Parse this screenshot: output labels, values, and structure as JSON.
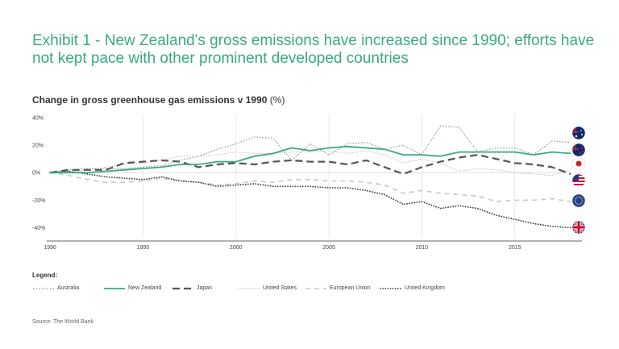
{
  "title": "Exhibit 1 - New Zealand's gross emissions have increased since 1990; efforts have not kept pace with other prominent developed countries",
  "subtitle": "Change in gross greenhouse gas emissions v 1990",
  "subtitle_unit": "(%)",
  "legend_heading": "Legend:",
  "source": "Source: The World Bank",
  "colors": {
    "new_zealand": "#3aaa80",
    "japan": "#555555",
    "australia": "#999999",
    "united_states": "#aaaaaa",
    "european_union": "#c8c8c8",
    "united_kingdom": "#444444",
    "title": "#3aaa80"
  },
  "flag_icons": [
    "australia-flag-icon",
    "new-zealand-flag-icon",
    "japan-flag-icon",
    "united-states-flag-icon",
    "european-union-flag-icon",
    "united-kingdom-flag-icon"
  ],
  "chart_data": {
    "type": "line",
    "title": "Change in gross greenhouse gas emissions v 1990 (%)",
    "xlabel": "",
    "ylabel": "",
    "x": [
      1990,
      1991,
      1992,
      1993,
      1994,
      1995,
      1996,
      1997,
      1998,
      1999,
      2000,
      2001,
      2002,
      2003,
      2004,
      2005,
      2006,
      2007,
      2008,
      2009,
      2010,
      2011,
      2012,
      2013,
      2014,
      2015,
      2016,
      2017,
      2018
    ],
    "xlim": [
      1990,
      2018
    ],
    "ylim": [
      -45,
      40
    ],
    "x_ticks": [
      1990,
      1995,
      2000,
      2005,
      2010,
      2015
    ],
    "x_tick_labels": [
      "1990",
      "1995",
      "2000",
      "2005",
      "2010",
      "2015"
    ],
    "y_ticks": [
      40,
      20,
      0,
      -20,
      -40
    ],
    "y_tick_labels": [
      "40%",
      "20%",
      "0%",
      "-20%",
      "-40%"
    ],
    "series": [
      {
        "key": "australia",
        "name": "Australia",
        "style": "dotted",
        "values": [
          0,
          2,
          3,
          3,
          3,
          4,
          5,
          9,
          12,
          17,
          21,
          26,
          25,
          9,
          21,
          13,
          21,
          22,
          17,
          20,
          13,
          34,
          33,
          15,
          18,
          18,
          13,
          23,
          22
        ]
      },
      {
        "key": "new_zealand",
        "name": "New Zealand",
        "style": "solid",
        "values": [
          0,
          0,
          0,
          1,
          2,
          3,
          4,
          6,
          6,
          8,
          8,
          12,
          14,
          18,
          16,
          18,
          19,
          18,
          17,
          13,
          13,
          12,
          15,
          15,
          15,
          15,
          13,
          15,
          14
        ]
      },
      {
        "key": "japan",
        "name": "Japan",
        "style": "longdash",
        "values": [
          0,
          2,
          2,
          2,
          7,
          8,
          9,
          8,
          4,
          6,
          7,
          6,
          8,
          9,
          8,
          8,
          6,
          9,
          4,
          -1,
          4,
          8,
          11,
          13,
          10,
          7,
          6,
          4,
          -1
        ]
      },
      {
        "key": "united_states",
        "name": "United States",
        "style": "finedot",
        "values": [
          0,
          0,
          2,
          4,
          6,
          7,
          9,
          12,
          12,
          13,
          15,
          14,
          14,
          15,
          15,
          16,
          14,
          16,
          13,
          7,
          10,
          7,
          1,
          3,
          2,
          0,
          -1,
          -2,
          2
        ]
      },
      {
        "key": "european_union",
        "name": "European Union",
        "style": "dashed",
        "values": [
          0,
          -2,
          -5,
          -7,
          -7,
          -6,
          -4,
          -6,
          -7,
          -9,
          -8,
          -6,
          -7,
          -5,
          -5,
          -6,
          -6,
          -7,
          -9,
          -15,
          -13,
          -15,
          -16,
          -17,
          -21,
          -20,
          -20,
          -19,
          -21
        ]
      },
      {
        "key": "united_kingdom",
        "name": "United Kingdom",
        "style": "heavydot",
        "values": [
          0,
          1,
          -1,
          -3,
          -4,
          -5,
          -3,
          -6,
          -7,
          -10,
          -9,
          -8,
          -10,
          -10,
          -10,
          -11,
          -11,
          -13,
          -16,
          -23,
          -21,
          -26,
          -24,
          -26,
          -31,
          -34,
          -37,
          -39,
          -40
        ]
      }
    ],
    "legend_position": "bottom"
  }
}
